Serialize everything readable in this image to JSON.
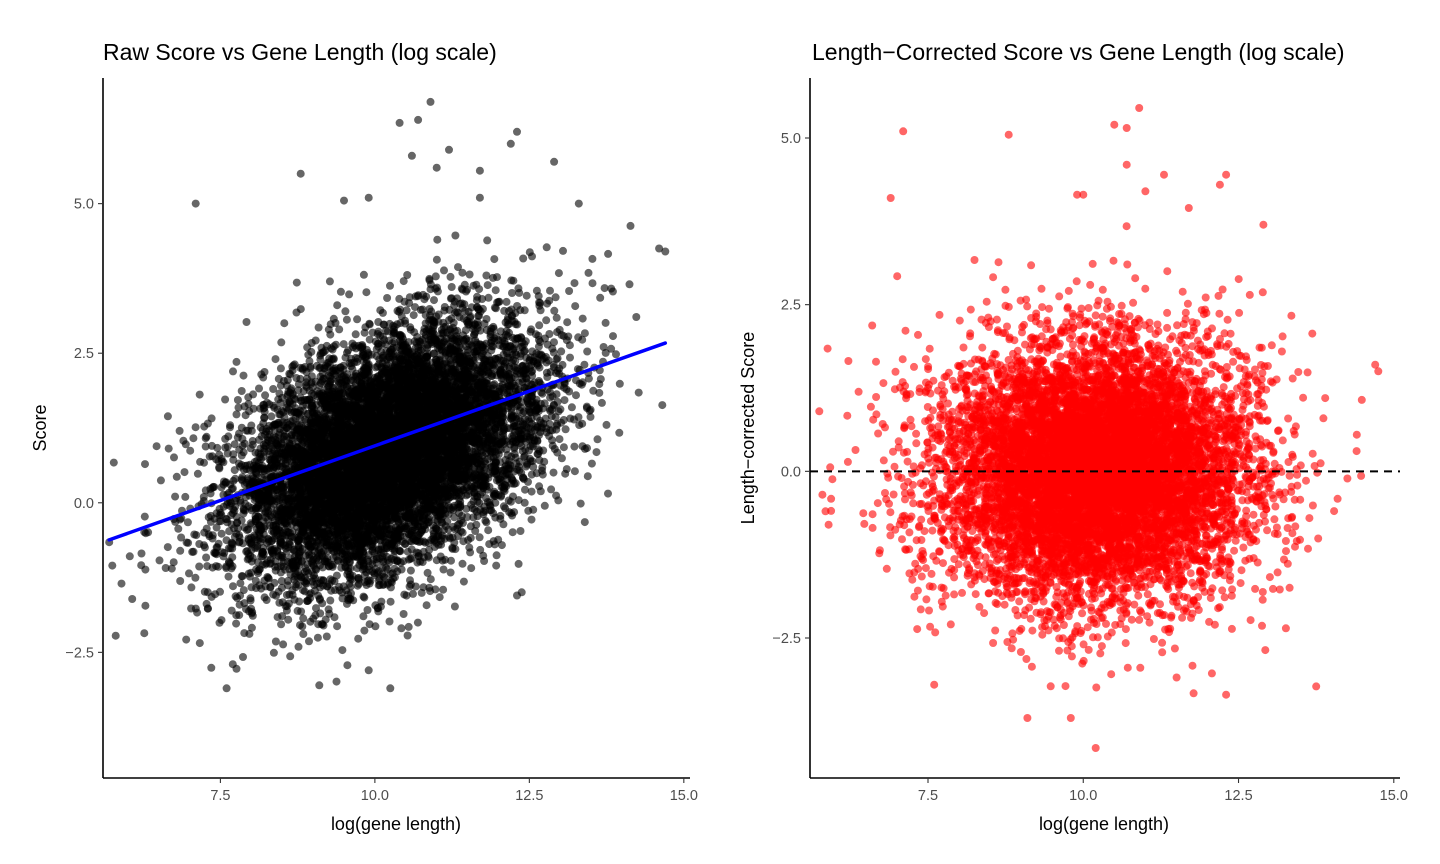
{
  "chart_data": [
    {
      "type": "scatter",
      "title": "Raw Score vs Gene Length (log scale)",
      "xlabel": "log(gene length)",
      "ylabel": "Score",
      "xlim": [
        5.6,
        15.1
      ],
      "ylim": [
        -4.6,
        7.1
      ],
      "x_ticks": [
        7.5,
        10.0,
        12.5,
        15.0
      ],
      "x_tick_labels": [
        "7.5",
        "10.0",
        "12.5",
        "15.0"
      ],
      "y_ticks": [
        -2.5,
        0.0,
        2.5,
        5.0
      ],
      "y_tick_labels": [
        "−2.5",
        "0.0",
        "2.5",
        "5.0"
      ],
      "point_color": "#000000",
      "point_opacity": 0.6,
      "grid": false,
      "legend": "none",
      "cloud": {
        "x_center": 10.2,
        "x_sd": 1.25,
        "x_range": [
          5.7,
          14.8
        ],
        "y_intercept_at_x_center": 0.85,
        "slope": 0.37,
        "y_sd": 0.95
      },
      "fit_line": {
        "color": "#0000ff",
        "points": [
          {
            "x": 5.7,
            "y": -0.62
          },
          {
            "x": 14.7,
            "y": 2.67
          }
        ]
      },
      "outliers": [
        {
          "x": 10.9,
          "y": 6.7
        },
        {
          "x": 10.4,
          "y": 6.35
        },
        {
          "x": 10.7,
          "y": 6.4
        },
        {
          "x": 12.3,
          "y": 6.2
        },
        {
          "x": 12.2,
          "y": 6.0
        },
        {
          "x": 11.2,
          "y": 5.9
        },
        {
          "x": 10.6,
          "y": 5.8
        },
        {
          "x": 11.0,
          "y": 5.6
        },
        {
          "x": 11.7,
          "y": 5.55
        },
        {
          "x": 12.9,
          "y": 5.7
        },
        {
          "x": 8.8,
          "y": 5.5
        },
        {
          "x": 7.1,
          "y": 5.0
        },
        {
          "x": 9.5,
          "y": 5.05
        },
        {
          "x": 9.9,
          "y": 5.1
        },
        {
          "x": 11.7,
          "y": 5.1
        },
        {
          "x": 13.3,
          "y": 5.0
        },
        {
          "x": 14.7,
          "y": 4.2
        },
        {
          "x": 14.6,
          "y": 4.25
        },
        {
          "x": 5.75,
          "y": -1.05
        },
        {
          "x": 5.9,
          "y": -1.35
        },
        {
          "x": 7.6,
          "y": -3.1
        },
        {
          "x": 9.1,
          "y": -3.05
        },
        {
          "x": 10.25,
          "y": -3.1
        },
        {
          "x": 9.9,
          "y": -2.8
        },
        {
          "x": 12.3,
          "y": -1.55
        }
      ]
    },
    {
      "type": "scatter",
      "title": "Length−Corrected Score vs Gene Length (log scale)",
      "xlabel": "log(gene length)",
      "ylabel": "Length−corrected Score",
      "xlim": [
        5.6,
        15.1
      ],
      "ylim": [
        -4.6,
        5.9
      ],
      "x_ticks": [
        7.5,
        10.0,
        12.5,
        15.0
      ],
      "x_tick_labels": [
        "7.5",
        "10.0",
        "12.5",
        "15.0"
      ],
      "y_ticks": [
        -2.5,
        0.0,
        2.5,
        5.0
      ],
      "y_tick_labels": [
        "−2.5",
        "0.0",
        "2.5",
        "5.0"
      ],
      "point_color": "#ff0000",
      "point_opacity": 0.6,
      "grid": false,
      "legend": "none",
      "cloud": {
        "x_center": 10.2,
        "x_sd": 1.25,
        "x_range": [
          5.7,
          14.8
        ],
        "y_intercept_at_x_center": 0.0,
        "slope": 0.0,
        "y_sd": 0.95
      },
      "reference_line": {
        "y": 0.0,
        "style": "dashed",
        "color": "#000000"
      },
      "outliers": [
        {
          "x": 10.9,
          "y": 5.45
        },
        {
          "x": 10.5,
          "y": 5.2
        },
        {
          "x": 10.7,
          "y": 5.15
        },
        {
          "x": 7.1,
          "y": 5.1
        },
        {
          "x": 8.8,
          "y": 5.05
        },
        {
          "x": 10.7,
          "y": 4.6
        },
        {
          "x": 11.3,
          "y": 4.45
        },
        {
          "x": 12.3,
          "y": 4.45
        },
        {
          "x": 12.2,
          "y": 4.3
        },
        {
          "x": 9.9,
          "y": 4.15
        },
        {
          "x": 10.0,
          "y": 4.15
        },
        {
          "x": 6.9,
          "y": 4.1
        },
        {
          "x": 11.0,
          "y": 4.2
        },
        {
          "x": 11.7,
          "y": 3.95
        },
        {
          "x": 12.9,
          "y": 3.7
        },
        {
          "x": 5.75,
          "y": 0.9
        },
        {
          "x": 5.8,
          "y": -0.35
        },
        {
          "x": 5.85,
          "y": -0.6
        },
        {
          "x": 5.9,
          "y": -0.8
        },
        {
          "x": 7.6,
          "y": -3.2
        },
        {
          "x": 9.1,
          "y": -3.7
        },
        {
          "x": 9.8,
          "y": -3.7
        },
        {
          "x": 10.2,
          "y": -4.15
        },
        {
          "x": 12.3,
          "y": -3.35
        },
        {
          "x": 14.75,
          "y": 1.5
        },
        {
          "x": 14.7,
          "y": 1.6
        }
      ]
    }
  ]
}
